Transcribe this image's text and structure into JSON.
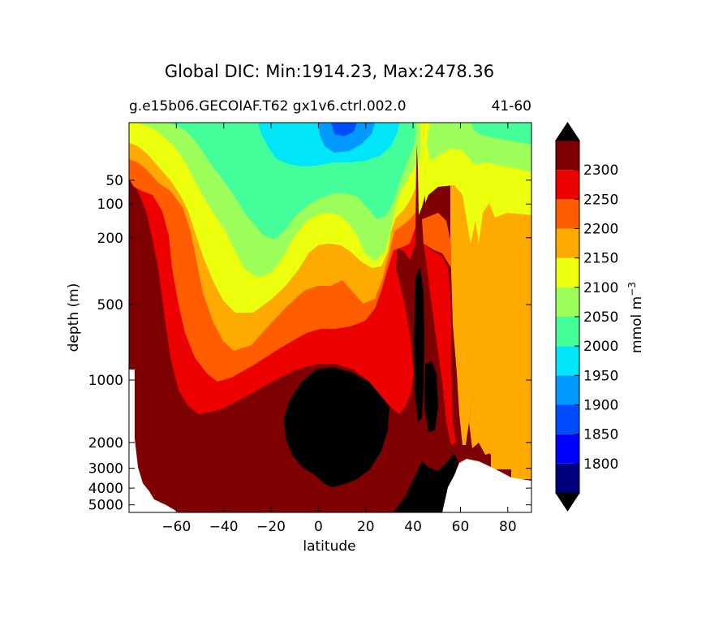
{
  "chart_data": {
    "type": "contour",
    "title": "Global DIC: Min:1914.23, Max:2478.36",
    "subtitle_left": "g.e15b06.GECOIAF.T62 gx1v6.ctrl.002.0",
    "subtitle_right": "41-60",
    "xlabel": "latitude",
    "ylabel": "depth (m)",
    "xlim": [
      -80,
      90
    ],
    "ylim": [
      0,
      5500
    ],
    "y_scale": "piecewise",
    "y_inverted": true,
    "x_ticks": [
      -60,
      -40,
      -20,
      0,
      20,
      40,
      60,
      80
    ],
    "x_tick_labels": [
      "−60",
      "−40",
      "−20",
      "0",
      "20",
      "40",
      "60",
      "80"
    ],
    "y_ticks": [
      50,
      100,
      200,
      500,
      1000,
      2000,
      3000,
      4000,
      5000
    ],
    "y_tick_labels": [
      "50",
      "100",
      "200",
      "500",
      "1000",
      "2000",
      "3000",
      "4000",
      "5000"
    ],
    "colorbar": {
      "label": "mmol m",
      "label_superscript": "−3",
      "levels": [
        1800,
        1850,
        1900,
        1950,
        2000,
        2050,
        2100,
        2150,
        2200,
        2250,
        2300
      ],
      "level_labels": [
        "1800",
        "1850",
        "1900",
        "1950",
        "2000",
        "2050",
        "2100",
        "2150",
        "2200",
        "2250",
        "2300"
      ],
      "colors": [
        "#00007f",
        "#0000ff",
        "#004cff",
        "#0099ff",
        "#00e5f8",
        "#44ff99",
        "#9cff5a",
        "#ecff0c",
        "#ffaa00",
        "#ff5d00",
        "#ec0000",
        "#7f0000"
      ],
      "extend": "both",
      "over_color": "#000000",
      "under_color": "#000000"
    }
  }
}
